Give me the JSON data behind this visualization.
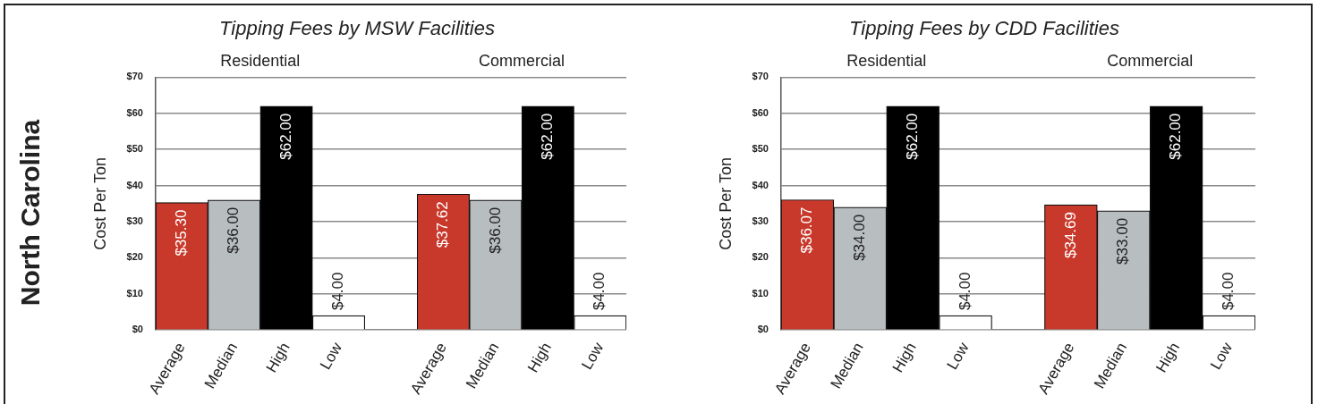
{
  "chart_data": [
    {
      "type": "bar",
      "title": "Tipping Fees by MSW Facilities",
      "ylabel": "Cost Per Ton",
      "annotations": [
        "North Carolina",
        "Residential",
        "Commercial"
      ],
      "categories": [
        "Average",
        "Median",
        "High",
        "Low",
        null,
        "Average",
        "Median",
        "High",
        "Low"
      ],
      "values": [
        35.3,
        36.0,
        62.0,
        4.0,
        null,
        37.62,
        36.0,
        62.0,
        4.0
      ],
      "colors": [
        "#c8392b",
        "#b8bdc0",
        "#000000",
        "#ffffff",
        null,
        "#c8392b",
        "#b8bdc0",
        "#000000",
        "#ffffff"
      ],
      "value_labels": [
        "$35.30",
        "$36.00",
        "$62.00",
        "$4.00",
        null,
        "$37.62",
        "$36.00",
        "$62.00",
        "$4.00"
      ],
      "ylim": [
        0,
        70
      ],
      "yticks": [
        {
          "value": 0,
          "label": "$0"
        },
        {
          "value": 10,
          "label": "$10"
        },
        {
          "value": 20,
          "label": "$20"
        },
        {
          "value": 30,
          "label": "$30"
        },
        {
          "value": 40,
          "label": "$40"
        },
        {
          "value": 50,
          "label": "$50"
        },
        {
          "value": 60,
          "label": "$60"
        },
        {
          "value": 70,
          "label": "$70"
        }
      ],
      "grid": "y"
    },
    {
      "type": "bar",
      "title": "Tipping Fees by CDD Facilities",
      "ylabel": "Cost Per Ton",
      "annotations": [
        "Residential",
        "Commercial"
      ],
      "categories": [
        "Average",
        "Median",
        "High",
        "Low",
        null,
        "Average",
        "Median",
        "High",
        "Low"
      ],
      "values": [
        36.07,
        34.0,
        62.0,
        4.0,
        null,
        34.69,
        33.0,
        62.0,
        4.0
      ],
      "colors": [
        "#c8392b",
        "#b8bdc0",
        "#000000",
        "#ffffff",
        null,
        "#c8392b",
        "#b8bdc0",
        "#000000",
        "#ffffff"
      ],
      "value_labels": [
        "$36.07",
        "$34.00",
        "$62.00",
        "$4.00",
        null,
        "$34.69",
        "$33.00",
        "$62.00",
        "$4.00"
      ],
      "ylim": [
        0,
        70
      ],
      "yticks": [
        {
          "value": 0,
          "label": "$0"
        },
        {
          "value": 10,
          "label": "$10"
        },
        {
          "value": 20,
          "label": "$20"
        },
        {
          "value": 30,
          "label": "$30"
        },
        {
          "value": 40,
          "label": "$40"
        },
        {
          "value": 50,
          "label": "$50"
        },
        {
          "value": 60,
          "label": "$60"
        },
        {
          "value": 70,
          "label": "$70"
        }
      ],
      "grid": "y"
    }
  ]
}
